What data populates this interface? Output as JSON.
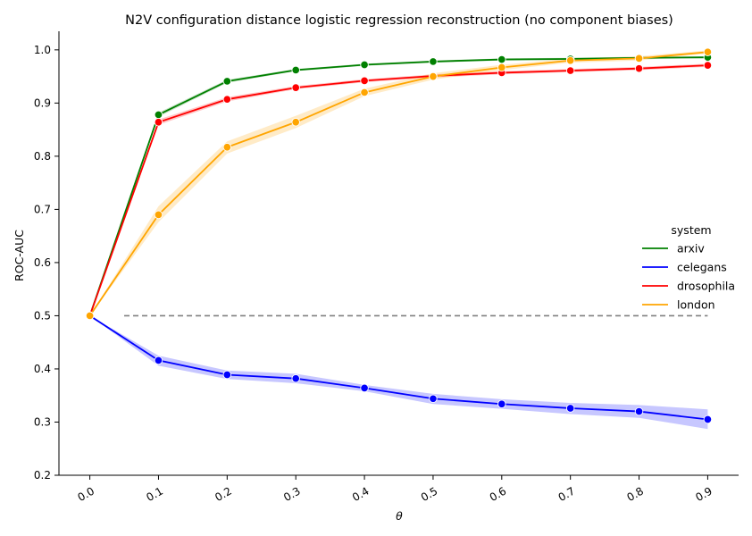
{
  "chart_data": {
    "type": "line",
    "title": "N2V configuration distance logistic regression reconstruction (no component biases)",
    "xlabel": "θ",
    "ylabel": "ROC-AUC",
    "x": [
      0.0,
      0.1,
      0.2,
      0.3,
      0.4,
      0.5,
      0.6,
      0.7,
      0.8,
      0.9
    ],
    "x_tick_labels": [
      "0.0",
      "0.1",
      "0.2",
      "0.3",
      "0.4",
      "0.5",
      "0.6",
      "0.7",
      "0.8",
      "0.9"
    ],
    "y_ticks": [
      0.2,
      0.3,
      0.4,
      0.5,
      0.6,
      0.7,
      0.8,
      0.9,
      1.0
    ],
    "y_tick_labels": [
      "0.2",
      "0.3",
      "0.4",
      "0.5",
      "0.6",
      "0.7",
      "0.8",
      "0.9",
      "1.0"
    ],
    "xlim": [
      -0.045,
      0.945
    ],
    "ylim": [
      0.2,
      1.035
    ],
    "x_tick_rotation_deg": -30,
    "grid": false,
    "legend": {
      "title": "system",
      "placement": "right"
    },
    "series": [
      {
        "name": "arxiv",
        "color": "#008000",
        "values": [
          0.5,
          0.878,
          0.941,
          0.962,
          0.972,
          0.978,
          0.982,
          0.983,
          0.985,
          0.986
        ],
        "ci_low": [
          0.5,
          0.874,
          0.938,
          0.96,
          0.97,
          0.976,
          0.98,
          0.981,
          0.983,
          0.984
        ],
        "ci_high": [
          0.5,
          0.882,
          0.944,
          0.964,
          0.974,
          0.98,
          0.984,
          0.985,
          0.987,
          0.988
        ]
      },
      {
        "name": "celegans",
        "color": "#0000ff",
        "values": [
          0.5,
          0.416,
          0.389,
          0.382,
          0.364,
          0.344,
          0.334,
          0.326,
          0.32,
          0.305
        ],
        "ci_low": [
          0.5,
          0.406,
          0.381,
          0.373,
          0.358,
          0.334,
          0.325,
          0.315,
          0.308,
          0.287
        ],
        "ci_high": [
          0.5,
          0.425,
          0.397,
          0.391,
          0.37,
          0.353,
          0.343,
          0.336,
          0.332,
          0.324
        ]
      },
      {
        "name": "drosophila",
        "color": "#ff0000",
        "values": [
          0.5,
          0.864,
          0.907,
          0.929,
          0.942,
          0.951,
          0.957,
          0.961,
          0.965,
          0.971
        ],
        "ci_low": [
          0.5,
          0.859,
          0.903,
          0.926,
          0.939,
          0.948,
          0.954,
          0.958,
          0.962,
          0.968
        ],
        "ci_high": [
          0.5,
          0.869,
          0.911,
          0.932,
          0.945,
          0.954,
          0.96,
          0.964,
          0.968,
          0.974
        ]
      },
      {
        "name": "london",
        "color": "#ffa500",
        "values": [
          0.5,
          0.69,
          0.817,
          0.864,
          0.92,
          0.95,
          0.967,
          0.98,
          0.984,
          0.996
        ],
        "ci_low": [
          0.5,
          0.676,
          0.805,
          0.853,
          0.913,
          0.944,
          0.962,
          0.976,
          0.98,
          0.993
        ],
        "ci_high": [
          0.5,
          0.706,
          0.828,
          0.876,
          0.927,
          0.956,
          0.972,
          0.984,
          0.988,
          0.999
        ]
      }
    ],
    "reference_line": {
      "y": 0.5,
      "x_start": 0.05,
      "x_end": 0.9,
      "color": "#808080",
      "style": "dashed"
    }
  }
}
